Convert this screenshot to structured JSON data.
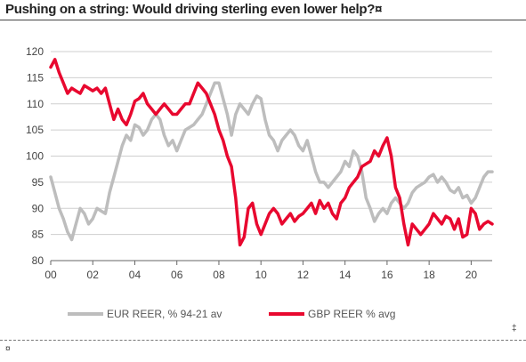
{
  "header": {
    "title": "Pushing on a string: Would driving sterling even lower help?"
  },
  "marks": {
    "end_mark": "¤",
    "side_mark": "‡"
  },
  "chart_data": {
    "type": "line",
    "title": "Pushing on a string: Would driving sterling even lower help?",
    "xlabel": "",
    "ylabel": "",
    "xlim": [
      2000,
      2021
    ],
    "ylim": [
      80,
      120
    ],
    "grid": true,
    "legend_position": "bottom",
    "x_ticks": [
      {
        "value": 2000,
        "label": "00"
      },
      {
        "value": 2002,
        "label": "02"
      },
      {
        "value": 2004,
        "label": "04"
      },
      {
        "value": 2006,
        "label": "06"
      },
      {
        "value": 2008,
        "label": "08"
      },
      {
        "value": 2010,
        "label": "10"
      },
      {
        "value": 2012,
        "label": "12"
      },
      {
        "value": 2014,
        "label": "14"
      },
      {
        "value": 2016,
        "label": "16"
      },
      {
        "value": 2018,
        "label": "18"
      },
      {
        "value": 2020,
        "label": "20"
      }
    ],
    "y_ticks": [
      80,
      85,
      90,
      95,
      100,
      105,
      110,
      115,
      120
    ],
    "series": [
      {
        "name": "EUR REER, % 94-21 av",
        "color": "#bdbdbd",
        "points": [
          [
            2000.0,
            96
          ],
          [
            2000.2,
            93
          ],
          [
            2000.4,
            90
          ],
          [
            2000.6,
            88
          ],
          [
            2000.8,
            85.5
          ],
          [
            2001.0,
            84
          ],
          [
            2001.2,
            87
          ],
          [
            2001.4,
            90
          ],
          [
            2001.6,
            89
          ],
          [
            2001.8,
            87
          ],
          [
            2002.0,
            88
          ],
          [
            2002.2,
            90
          ],
          [
            2002.4,
            89.5
          ],
          [
            2002.6,
            89
          ],
          [
            2002.8,
            93
          ],
          [
            2003.0,
            96
          ],
          [
            2003.2,
            99
          ],
          [
            2003.4,
            102
          ],
          [
            2003.6,
            104
          ],
          [
            2003.8,
            103
          ],
          [
            2004.0,
            106
          ],
          [
            2004.2,
            105.5
          ],
          [
            2004.4,
            104
          ],
          [
            2004.6,
            105
          ],
          [
            2004.8,
            107
          ],
          [
            2005.0,
            108
          ],
          [
            2005.2,
            107
          ],
          [
            2005.4,
            104
          ],
          [
            2005.6,
            102
          ],
          [
            2005.8,
            103
          ],
          [
            2006.0,
            101
          ],
          [
            2006.2,
            103
          ],
          [
            2006.4,
            105
          ],
          [
            2006.6,
            105.5
          ],
          [
            2006.8,
            106
          ],
          [
            2007.0,
            107
          ],
          [
            2007.2,
            108
          ],
          [
            2007.4,
            110
          ],
          [
            2007.6,
            112
          ],
          [
            2007.8,
            114
          ],
          [
            2008.0,
            114
          ],
          [
            2008.2,
            111
          ],
          [
            2008.4,
            108
          ],
          [
            2008.6,
            104
          ],
          [
            2008.8,
            108
          ],
          [
            2009.0,
            110
          ],
          [
            2009.2,
            109
          ],
          [
            2009.4,
            108
          ],
          [
            2009.6,
            110
          ],
          [
            2009.8,
            111.5
          ],
          [
            2010.0,
            111
          ],
          [
            2010.2,
            107
          ],
          [
            2010.4,
            104
          ],
          [
            2010.6,
            103
          ],
          [
            2010.8,
            101
          ],
          [
            2011.0,
            103
          ],
          [
            2011.2,
            104
          ],
          [
            2011.4,
            105
          ],
          [
            2011.6,
            104
          ],
          [
            2011.8,
            102
          ],
          [
            2012.0,
            101
          ],
          [
            2012.2,
            103
          ],
          [
            2012.4,
            100
          ],
          [
            2012.6,
            97
          ],
          [
            2012.8,
            95
          ],
          [
            2013.0,
            95
          ],
          [
            2013.2,
            94
          ],
          [
            2013.4,
            95
          ],
          [
            2013.6,
            96
          ],
          [
            2013.8,
            97
          ],
          [
            2014.0,
            99
          ],
          [
            2014.2,
            98
          ],
          [
            2014.4,
            101
          ],
          [
            2014.6,
            100
          ],
          [
            2014.8,
            97
          ],
          [
            2015.0,
            92
          ],
          [
            2015.2,
            90
          ],
          [
            2015.4,
            87.5
          ],
          [
            2015.6,
            89
          ],
          [
            2015.8,
            90
          ],
          [
            2016.0,
            89
          ],
          [
            2016.2,
            91
          ],
          [
            2016.4,
            92
          ],
          [
            2016.6,
            91
          ],
          [
            2016.8,
            90
          ],
          [
            2017.0,
            91
          ],
          [
            2017.2,
            93
          ],
          [
            2017.4,
            94
          ],
          [
            2017.6,
            94.5
          ],
          [
            2017.8,
            95
          ],
          [
            2018.0,
            96
          ],
          [
            2018.2,
            96.5
          ],
          [
            2018.4,
            95
          ],
          [
            2018.6,
            96
          ],
          [
            2018.8,
            95
          ],
          [
            2019.0,
            93.5
          ],
          [
            2019.2,
            93
          ],
          [
            2019.4,
            94
          ],
          [
            2019.6,
            92
          ],
          [
            2019.8,
            92.5
          ],
          [
            2020.0,
            91
          ],
          [
            2020.2,
            92
          ],
          [
            2020.4,
            94
          ],
          [
            2020.6,
            96
          ],
          [
            2020.8,
            97
          ],
          [
            2021.0,
            97
          ]
        ]
      },
      {
        "name": "GBP REER % avg",
        "color": "#e8082f",
        "points": [
          [
            2000.0,
            117
          ],
          [
            2000.2,
            118.5
          ],
          [
            2000.4,
            116
          ],
          [
            2000.6,
            114
          ],
          [
            2000.8,
            112
          ],
          [
            2001.0,
            113
          ],
          [
            2001.2,
            112.5
          ],
          [
            2001.4,
            112
          ],
          [
            2001.6,
            113.5
          ],
          [
            2001.8,
            113
          ],
          [
            2002.0,
            112.5
          ],
          [
            2002.2,
            113
          ],
          [
            2002.4,
            112
          ],
          [
            2002.6,
            113
          ],
          [
            2002.8,
            110
          ],
          [
            2003.0,
            107
          ],
          [
            2003.2,
            109
          ],
          [
            2003.4,
            107
          ],
          [
            2003.6,
            106
          ],
          [
            2003.8,
            108
          ],
          [
            2004.0,
            110.5
          ],
          [
            2004.2,
            111
          ],
          [
            2004.4,
            112
          ],
          [
            2004.6,
            110
          ],
          [
            2004.8,
            109
          ],
          [
            2005.0,
            108
          ],
          [
            2005.2,
            109
          ],
          [
            2005.4,
            110
          ],
          [
            2005.6,
            109
          ],
          [
            2005.8,
            108
          ],
          [
            2006.0,
            108
          ],
          [
            2006.2,
            109
          ],
          [
            2006.4,
            110
          ],
          [
            2006.6,
            110
          ],
          [
            2006.8,
            112
          ],
          [
            2007.0,
            114
          ],
          [
            2007.2,
            113
          ],
          [
            2007.4,
            112
          ],
          [
            2007.6,
            110
          ],
          [
            2007.8,
            108
          ],
          [
            2008.0,
            105
          ],
          [
            2008.2,
            103
          ],
          [
            2008.4,
            100
          ],
          [
            2008.6,
            98
          ],
          [
            2008.8,
            92
          ],
          [
            2009.0,
            83
          ],
          [
            2009.2,
            84.5
          ],
          [
            2009.4,
            90
          ],
          [
            2009.6,
            91
          ],
          [
            2009.8,
            87
          ],
          [
            2010.0,
            85
          ],
          [
            2010.2,
            87
          ],
          [
            2010.4,
            89
          ],
          [
            2010.6,
            90
          ],
          [
            2010.8,
            89
          ],
          [
            2011.0,
            87
          ],
          [
            2011.2,
            88
          ],
          [
            2011.4,
            89
          ],
          [
            2011.6,
            87.5
          ],
          [
            2011.8,
            88.5
          ],
          [
            2012.0,
            89
          ],
          [
            2012.2,
            90
          ],
          [
            2012.4,
            91
          ],
          [
            2012.6,
            89
          ],
          [
            2012.8,
            91.5
          ],
          [
            2013.0,
            90
          ],
          [
            2013.2,
            91
          ],
          [
            2013.4,
            89
          ],
          [
            2013.6,
            88
          ],
          [
            2013.8,
            91
          ],
          [
            2014.0,
            92
          ],
          [
            2014.2,
            94
          ],
          [
            2014.4,
            95
          ],
          [
            2014.6,
            96
          ],
          [
            2014.8,
            98
          ],
          [
            2015.0,
            98.5
          ],
          [
            2015.2,
            99
          ],
          [
            2015.4,
            101
          ],
          [
            2015.6,
            100
          ],
          [
            2015.8,
            102
          ],
          [
            2016.0,
            103.5
          ],
          [
            2016.2,
            100
          ],
          [
            2016.4,
            94
          ],
          [
            2016.6,
            92
          ],
          [
            2016.8,
            87
          ],
          [
            2017.0,
            83
          ],
          [
            2017.2,
            87
          ],
          [
            2017.4,
            86
          ],
          [
            2017.6,
            85
          ],
          [
            2017.8,
            86
          ],
          [
            2018.0,
            87
          ],
          [
            2018.2,
            89
          ],
          [
            2018.4,
            88
          ],
          [
            2018.6,
            87
          ],
          [
            2018.8,
            88.5
          ],
          [
            2019.0,
            88
          ],
          [
            2019.2,
            86
          ],
          [
            2019.4,
            88
          ],
          [
            2019.6,
            84.5
          ],
          [
            2019.8,
            85
          ],
          [
            2020.0,
            90
          ],
          [
            2020.2,
            89
          ],
          [
            2020.4,
            86
          ],
          [
            2020.6,
            87
          ],
          [
            2020.8,
            87.5
          ],
          [
            2021.0,
            87
          ]
        ]
      }
    ]
  }
}
